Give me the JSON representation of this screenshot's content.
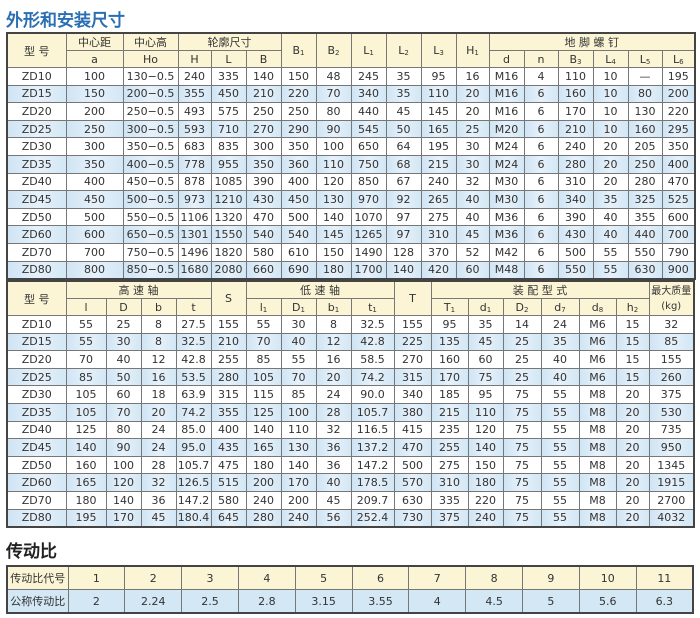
{
  "dimensions": {
    "title": "外形和安装尺寸",
    "headers": {
      "model": "型 号",
      "center_distance": "中心距",
      "center_height": "中心高",
      "outline": "轮廓尺寸",
      "anchor_bolts": "地 脚 螺 钉"
    },
    "sub_headers": [
      {
        "main": "a",
        "sub": ""
      },
      {
        "main": "Ho",
        "sub": ""
      },
      {
        "main": "H",
        "sub": ""
      },
      {
        "main": "L",
        "sub": ""
      },
      {
        "main": "B",
        "sub": ""
      },
      {
        "main": "B",
        "sub": "1"
      },
      {
        "main": "B",
        "sub": "2"
      },
      {
        "main": "L",
        "sub": "1"
      },
      {
        "main": "L",
        "sub": "2"
      },
      {
        "main": "L",
        "sub": "3"
      },
      {
        "main": "H",
        "sub": "1"
      },
      {
        "main": "d",
        "sub": ""
      },
      {
        "main": "n",
        "sub": ""
      },
      {
        "main": "B",
        "sub": "3"
      },
      {
        "main": "L",
        "sub": "4"
      },
      {
        "main": "L",
        "sub": "5"
      },
      {
        "main": "L",
        "sub": "6"
      }
    ],
    "rows": [
      [
        "ZD10",
        "100",
        "130−0.5",
        "240",
        "335",
        "140",
        "150",
        "48",
        "245",
        "35",
        "95",
        "16",
        "M16",
        "4",
        "110",
        "10",
        "—",
        "195"
      ],
      [
        "ZD15",
        "150",
        "200−0.5",
        "355",
        "450",
        "210",
        "220",
        "70",
        "340",
        "35",
        "110",
        "20",
        "M16",
        "6",
        "160",
        "10",
        "80",
        "200"
      ],
      [
        "ZD20",
        "200",
        "250−0.5",
        "493",
        "575",
        "250",
        "250",
        "80",
        "440",
        "45",
        "145",
        "20",
        "M16",
        "6",
        "170",
        "10",
        "130",
        "220"
      ],
      [
        "ZD25",
        "250",
        "300−0.5",
        "593",
        "710",
        "270",
        "290",
        "90",
        "545",
        "50",
        "165",
        "25",
        "M20",
        "6",
        "210",
        "10",
        "160",
        "295"
      ],
      [
        "ZD30",
        "300",
        "350−0.5",
        "683",
        "835",
        "300",
        "350",
        "100",
        "650",
        "64",
        "195",
        "30",
        "M24",
        "6",
        "240",
        "20",
        "205",
        "350"
      ],
      [
        "ZD35",
        "350",
        "400−0.5",
        "778",
        "955",
        "350",
        "360",
        "110",
        "750",
        "68",
        "215",
        "30",
        "M24",
        "6",
        "280",
        "20",
        "250",
        "400"
      ],
      [
        "ZD40",
        "400",
        "450−0.5",
        "878",
        "1085",
        "390",
        "400",
        "120",
        "850",
        "67",
        "240",
        "32",
        "M30",
        "6",
        "310",
        "20",
        "280",
        "470"
      ],
      [
        "ZD45",
        "450",
        "500−0.5",
        "973",
        "1210",
        "430",
        "450",
        "130",
        "970",
        "92",
        "265",
        "40",
        "M30",
        "6",
        "340",
        "35",
        "325",
        "525"
      ],
      [
        "ZD50",
        "500",
        "550−0.5",
        "1106",
        "1320",
        "470",
        "500",
        "140",
        "1070",
        "97",
        "275",
        "40",
        "M36",
        "6",
        "390",
        "40",
        "355",
        "600"
      ],
      [
        "ZD60",
        "600",
        "650−0.5",
        "1301",
        "1550",
        "540",
        "540",
        "145",
        "1265",
        "97",
        "310",
        "45",
        "M36",
        "6",
        "430",
        "40",
        "440",
        "700"
      ],
      [
        "ZD70",
        "700",
        "750−0.5",
        "1496",
        "1820",
        "580",
        "610",
        "150",
        "1490",
        "128",
        "370",
        "52",
        "M42",
        "6",
        "500",
        "55",
        "550",
        "790"
      ],
      [
        "ZD80",
        "800",
        "850−0.5",
        "1680",
        "2080",
        "660",
        "690",
        "180",
        "1700",
        "140",
        "420",
        "60",
        "M48",
        "6",
        "550",
        "55",
        "630",
        "900"
      ]
    ]
  },
  "shafts": {
    "headers": {
      "model": "型 号",
      "high_speed": "高 速 轴",
      "s": "S",
      "low_speed": "低 速 轴",
      "t_cap": "T",
      "assembly": "装 配 型 式",
      "max_mass": "最大质量",
      "max_mass_unit": "(kg)"
    },
    "sub_headers": [
      {
        "main": "l",
        "sub": ""
      },
      {
        "main": "D",
        "sub": ""
      },
      {
        "main": "b",
        "sub": ""
      },
      {
        "main": "t",
        "sub": ""
      },
      {
        "main": "l",
        "sub": "1"
      },
      {
        "main": "D",
        "sub": "1"
      },
      {
        "main": "b",
        "sub": "1"
      },
      {
        "main": "t",
        "sub": "1"
      },
      {
        "main": "T",
        "sub": "1"
      },
      {
        "main": "d",
        "sub": "1"
      },
      {
        "main": "D",
        "sub": "2"
      },
      {
        "main": "d",
        "sub": "7"
      },
      {
        "main": "d",
        "sub": "8"
      },
      {
        "main": "h",
        "sub": "2"
      }
    ],
    "rows": [
      [
        "ZD10",
        "55",
        "25",
        "8",
        "27.5",
        "155",
        "55",
        "30",
        "8",
        "32.5",
        "155",
        "95",
        "35",
        "14",
        "24",
        "M6",
        "15",
        "32"
      ],
      [
        "ZD15",
        "55",
        "30",
        "8",
        "32.5",
        "210",
        "70",
        "40",
        "12",
        "42.8",
        "225",
        "135",
        "45",
        "25",
        "35",
        "M6",
        "15",
        "85"
      ],
      [
        "ZD20",
        "70",
        "40",
        "12",
        "42.8",
        "255",
        "85",
        "55",
        "16",
        "58.5",
        "270",
        "160",
        "60",
        "25",
        "40",
        "M6",
        "15",
        "155"
      ],
      [
        "ZD25",
        "85",
        "50",
        "16",
        "53.5",
        "280",
        "105",
        "70",
        "20",
        "74.2",
        "315",
        "170",
        "75",
        "25",
        "40",
        "M6",
        "15",
        "260"
      ],
      [
        "ZD30",
        "105",
        "60",
        "18",
        "63.9",
        "315",
        "115",
        "85",
        "24",
        "90.0",
        "340",
        "185",
        "95",
        "75",
        "55",
        "M8",
        "20",
        "375"
      ],
      [
        "ZD35",
        "105",
        "70",
        "20",
        "74.2",
        "355",
        "125",
        "100",
        "28",
        "105.7",
        "380",
        "215",
        "110",
        "75",
        "55",
        "M8",
        "20",
        "530"
      ],
      [
        "ZD40",
        "125",
        "80",
        "24",
        "85.0",
        "400",
        "140",
        "110",
        "32",
        "116.5",
        "415",
        "235",
        "120",
        "75",
        "55",
        "M8",
        "20",
        "735"
      ],
      [
        "ZD45",
        "140",
        "90",
        "24",
        "95.0",
        "435",
        "165",
        "130",
        "36",
        "137.2",
        "470",
        "255",
        "140",
        "75",
        "55",
        "M8",
        "20",
        "950"
      ],
      [
        "ZD50",
        "160",
        "100",
        "28",
        "105.7",
        "475",
        "180",
        "140",
        "36",
        "147.2",
        "500",
        "275",
        "150",
        "75",
        "55",
        "M8",
        "20",
        "1345"
      ],
      [
        "ZD60",
        "165",
        "120",
        "32",
        "126.5",
        "515",
        "200",
        "170",
        "40",
        "178.5",
        "570",
        "310",
        "180",
        "75",
        "55",
        "M8",
        "20",
        "1915"
      ],
      [
        "ZD70",
        "180",
        "140",
        "36",
        "147.2",
        "580",
        "240",
        "200",
        "45",
        "209.7",
        "630",
        "335",
        "220",
        "75",
        "55",
        "M8",
        "20",
        "2700"
      ],
      [
        "ZD80",
        "195",
        "170",
        "45",
        "180.4",
        "645",
        "280",
        "240",
        "56",
        "252.4",
        "730",
        "375",
        "240",
        "75",
        "55",
        "M8",
        "20",
        "4032"
      ]
    ]
  },
  "ratios": {
    "title": "传动比",
    "code_label": "传动比代号",
    "nominal_label": "公称传动比",
    "codes": [
      "1",
      "2",
      "3",
      "4",
      "5",
      "6",
      "7",
      "8",
      "9",
      "10",
      "11"
    ],
    "nominal": [
      "2",
      "2.24",
      "2.5",
      "2.8",
      "3.15",
      "3.55",
      "4",
      "4.5",
      "5",
      "5.6",
      "6.3"
    ]
  },
  "colors": {
    "title_blue": "#2a6fb3",
    "header_bg": "#fbf5d6",
    "row_alt_blue": "#d3e7f5"
  }
}
